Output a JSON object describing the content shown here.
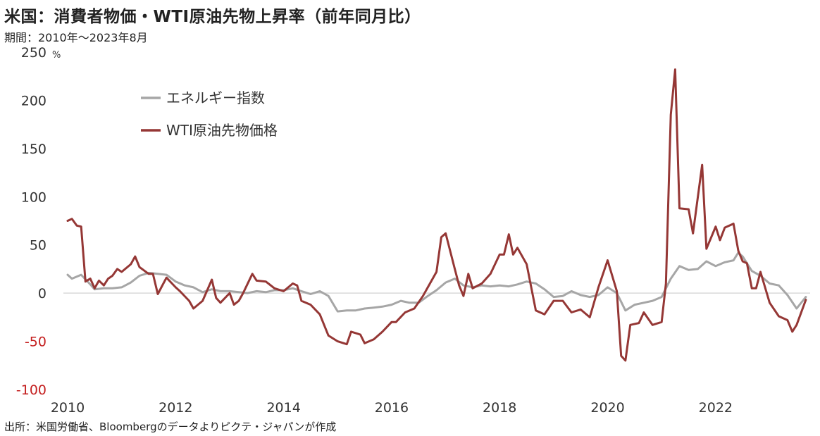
{
  "header": {
    "title": "米国：消費者物価・WTI原油先物上昇率（前年同月比）",
    "period": "期間：2010年～2023年8月"
  },
  "footer": {
    "source": "出所：米国労働省、Bloombergのデータよりピクテ・ジャパンが作成"
  },
  "colors": {
    "energy": "#a6a6a6",
    "wti": "#953735",
    "negative_tick": "#c41f1f",
    "zero_line": "#d9d9d9"
  },
  "chart_data": {
    "type": "line",
    "xlabel": "",
    "ylabel": "%",
    "y_unit": "%",
    "ylim": [
      -100,
      250
    ],
    "yticks": [
      "250",
      "200",
      "150",
      "100",
      "50",
      "0",
      "-50",
      "-100"
    ],
    "xlim": [
      2010,
      2023.75
    ],
    "xticks": [
      "2010",
      "2012",
      "2014",
      "2016",
      "2018",
      "2020",
      "2022"
    ],
    "legend_position": "upper-left",
    "grid": false,
    "series": [
      {
        "name": "エネルギー指数",
        "color": "#a6a6a6",
        "points": [
          [
            2010.0,
            19
          ],
          [
            2010.08,
            15
          ],
          [
            2010.25,
            19
          ],
          [
            2010.42,
            9
          ],
          [
            2010.5,
            4
          ],
          [
            2010.67,
            5
          ],
          [
            2010.83,
            5
          ],
          [
            2011.0,
            6
          ],
          [
            2011.17,
            11
          ],
          [
            2011.33,
            18
          ],
          [
            2011.5,
            21
          ],
          [
            2011.67,
            20
          ],
          [
            2011.83,
            19
          ],
          [
            2012.0,
            12
          ],
          [
            2012.17,
            8
          ],
          [
            2012.33,
            6
          ],
          [
            2012.5,
            1
          ],
          [
            2012.67,
            4
          ],
          [
            2012.83,
            2
          ],
          [
            2013.0,
            2
          ],
          [
            2013.17,
            1
          ],
          [
            2013.33,
            0
          ],
          [
            2013.5,
            2
          ],
          [
            2013.67,
            1
          ],
          [
            2013.83,
            3
          ],
          [
            2014.0,
            3
          ],
          [
            2014.17,
            5
          ],
          [
            2014.33,
            2
          ],
          [
            2014.5,
            -1
          ],
          [
            2014.67,
            2
          ],
          [
            2014.83,
            -3
          ],
          [
            2015.0,
            -19
          ],
          [
            2015.17,
            -18
          ],
          [
            2015.33,
            -18
          ],
          [
            2015.5,
            -16
          ],
          [
            2015.67,
            -15
          ],
          [
            2015.83,
            -14
          ],
          [
            2016.0,
            -12
          ],
          [
            2016.17,
            -8
          ],
          [
            2016.33,
            -10
          ],
          [
            2016.5,
            -10
          ],
          [
            2016.67,
            -3
          ],
          [
            2016.83,
            3
          ],
          [
            2017.0,
            11
          ],
          [
            2017.17,
            15
          ],
          [
            2017.33,
            8
          ],
          [
            2017.5,
            6
          ],
          [
            2017.67,
            8
          ],
          [
            2017.83,
            7
          ],
          [
            2018.0,
            8
          ],
          [
            2018.17,
            7
          ],
          [
            2018.33,
            9
          ],
          [
            2018.5,
            12
          ],
          [
            2018.67,
            10
          ],
          [
            2018.83,
            4
          ],
          [
            2019.0,
            -4
          ],
          [
            2019.17,
            -3
          ],
          [
            2019.33,
            2
          ],
          [
            2019.5,
            -2
          ],
          [
            2019.67,
            -4
          ],
          [
            2019.83,
            -2
          ],
          [
            2020.0,
            6
          ],
          [
            2020.17,
            0
          ],
          [
            2020.33,
            -18
          ],
          [
            2020.5,
            -12
          ],
          [
            2020.67,
            -10
          ],
          [
            2020.83,
            -8
          ],
          [
            2021.0,
            -4
          ],
          [
            2021.17,
            15
          ],
          [
            2021.33,
            28
          ],
          [
            2021.5,
            24
          ],
          [
            2021.67,
            25
          ],
          [
            2021.83,
            33
          ],
          [
            2022.0,
            28
          ],
          [
            2022.17,
            32
          ],
          [
            2022.33,
            34
          ],
          [
            2022.42,
            42
          ],
          [
            2022.5,
            38
          ],
          [
            2022.67,
            23
          ],
          [
            2022.83,
            18
          ],
          [
            2023.0,
            10
          ],
          [
            2023.17,
            8
          ],
          [
            2023.33,
            -2
          ],
          [
            2023.5,
            -16
          ],
          [
            2023.67,
            -4
          ]
        ]
      },
      {
        "name": "WTI原油先物価格",
        "color": "#953735",
        "points": [
          [
            2010.0,
            75
          ],
          [
            2010.08,
            77
          ],
          [
            2010.17,
            70
          ],
          [
            2010.25,
            69
          ],
          [
            2010.33,
            12
          ],
          [
            2010.42,
            15
          ],
          [
            2010.5,
            5
          ],
          [
            2010.58,
            13
          ],
          [
            2010.67,
            8
          ],
          [
            2010.75,
            15
          ],
          [
            2010.83,
            18
          ],
          [
            2010.92,
            25
          ],
          [
            2011.0,
            22
          ],
          [
            2011.17,
            30
          ],
          [
            2011.25,
            38
          ],
          [
            2011.33,
            27
          ],
          [
            2011.5,
            20
          ],
          [
            2011.58,
            20
          ],
          [
            2011.67,
            -1
          ],
          [
            2011.83,
            16
          ],
          [
            2012.0,
            6
          ],
          [
            2012.08,
            2
          ],
          [
            2012.25,
            -8
          ],
          [
            2012.33,
            -16
          ],
          [
            2012.5,
            -8
          ],
          [
            2012.67,
            14
          ],
          [
            2012.75,
            -5
          ],
          [
            2012.83,
            -10
          ],
          [
            2013.0,
            0
          ],
          [
            2013.08,
            -12
          ],
          [
            2013.17,
            -8
          ],
          [
            2013.25,
            0
          ],
          [
            2013.42,
            20
          ],
          [
            2013.5,
            13
          ],
          [
            2013.67,
            12
          ],
          [
            2013.83,
            5
          ],
          [
            2014.0,
            2
          ],
          [
            2014.17,
            10
          ],
          [
            2014.25,
            8
          ],
          [
            2014.33,
            -8
          ],
          [
            2014.5,
            -12
          ],
          [
            2014.67,
            -22
          ],
          [
            2014.83,
            -44
          ],
          [
            2015.0,
            -50
          ],
          [
            2015.17,
            -53
          ],
          [
            2015.25,
            -40
          ],
          [
            2015.42,
            -43
          ],
          [
            2015.5,
            -52
          ],
          [
            2015.67,
            -48
          ],
          [
            2015.83,
            -40
          ],
          [
            2016.0,
            -30
          ],
          [
            2016.08,
            -30
          ],
          [
            2016.25,
            -20
          ],
          [
            2016.42,
            -16
          ],
          [
            2016.58,
            -3
          ],
          [
            2016.67,
            6
          ],
          [
            2016.83,
            22
          ],
          [
            2016.92,
            58
          ],
          [
            2017.0,
            62
          ],
          [
            2017.17,
            25
          ],
          [
            2017.25,
            8
          ],
          [
            2017.33,
            -3
          ],
          [
            2017.42,
            20
          ],
          [
            2017.5,
            5
          ],
          [
            2017.67,
            10
          ],
          [
            2017.83,
            20
          ],
          [
            2018.0,
            40
          ],
          [
            2018.08,
            40
          ],
          [
            2018.17,
            61
          ],
          [
            2018.25,
            40
          ],
          [
            2018.33,
            47
          ],
          [
            2018.5,
            30
          ],
          [
            2018.67,
            -18
          ],
          [
            2018.83,
            -22
          ],
          [
            2019.0,
            -8
          ],
          [
            2019.17,
            -8
          ],
          [
            2019.33,
            -20
          ],
          [
            2019.5,
            -17
          ],
          [
            2019.67,
            -25
          ],
          [
            2019.83,
            6
          ],
          [
            2020.0,
            34
          ],
          [
            2020.17,
            2
          ],
          [
            2020.25,
            -65
          ],
          [
            2020.33,
            -70
          ],
          [
            2020.42,
            -33
          ],
          [
            2020.58,
            -31
          ],
          [
            2020.67,
            -20
          ],
          [
            2020.83,
            -33
          ],
          [
            2021.0,
            -30
          ],
          [
            2021.08,
            10
          ],
          [
            2021.17,
            185
          ],
          [
            2021.25,
            232
          ],
          [
            2021.33,
            88
          ],
          [
            2021.5,
            87
          ],
          [
            2021.58,
            62
          ],
          [
            2021.75,
            133
          ],
          [
            2021.83,
            46
          ],
          [
            2022.0,
            69
          ],
          [
            2022.08,
            55
          ],
          [
            2022.17,
            68
          ],
          [
            2022.33,
            72
          ],
          [
            2022.42,
            44
          ],
          [
            2022.5,
            33
          ],
          [
            2022.58,
            31
          ],
          [
            2022.67,
            5
          ],
          [
            2022.75,
            5
          ],
          [
            2022.83,
            22
          ],
          [
            2023.0,
            -10
          ],
          [
            2023.17,
            -24
          ],
          [
            2023.33,
            -28
          ],
          [
            2023.42,
            -40
          ],
          [
            2023.5,
            -33
          ],
          [
            2023.67,
            -7
          ]
        ]
      }
    ]
  }
}
